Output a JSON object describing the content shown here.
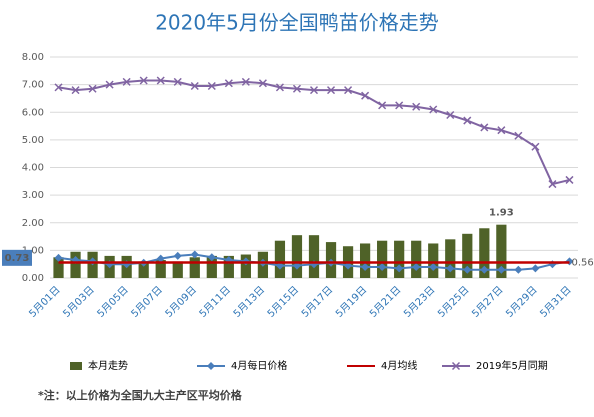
{
  "chart_data": {
    "type": "combo",
    "title": "2020年5月份全国鸭苗价格走势",
    "note": "*注：以上价格为全国九大主产区平均价格",
    "categories": [
      "5月01日",
      null,
      "5月03日",
      null,
      "5月05日",
      null,
      "5月07日",
      null,
      "5月09日",
      null,
      "5月11日",
      null,
      "5月13日",
      null,
      "5月15日",
      null,
      "5月17日",
      null,
      "5月19日",
      null,
      "5月21日",
      null,
      "5月23日",
      null,
      "5月25日",
      null,
      "5月27日",
      null,
      "5月29日",
      null,
      "5月31日"
    ],
    "ylim": [
      0,
      8
    ],
    "yticks": [
      {
        "value": 0,
        "label": "0.00"
      },
      {
        "value": 1,
        "label": "1.00"
      },
      {
        "value": 2,
        "label": "2.00"
      },
      {
        "value": 3,
        "label": "3.00"
      },
      {
        "value": 4,
        "label": "4.00"
      },
      {
        "value": 5,
        "label": "5.00"
      },
      {
        "value": 6,
        "label": "6.00"
      },
      {
        "value": 7,
        "label": "7.00"
      },
      {
        "value": 8,
        "label": "8.00"
      }
    ],
    "grid": true,
    "legend": "bottom",
    "series": [
      {
        "name": "本月走势",
        "type": "bar",
        "color": "#4f6228",
        "values": [
          0.75,
          0.95,
          0.95,
          0.8,
          0.8,
          0.6,
          0.65,
          0.6,
          0.75,
          0.8,
          0.8,
          0.85,
          0.95,
          1.35,
          1.55,
          1.55,
          1.3,
          1.15,
          1.25,
          1.35,
          1.35,
          1.35,
          1.25,
          1.4,
          1.6,
          1.8,
          1.93,
          null,
          null,
          null,
          null
        ],
        "value_labels": [
          null,
          null,
          null,
          null,
          null,
          null,
          null,
          null,
          null,
          null,
          null,
          null,
          null,
          null,
          null,
          null,
          null,
          null,
          null,
          null,
          null,
          null,
          null,
          null,
          null,
          null,
          "1.93",
          null,
          null,
          null,
          null
        ]
      },
      {
        "name": "4月每日价格",
        "type": "line",
        "marker": "diamond",
        "color": "#4a7ebb",
        "values": [
          0.73,
          0.65,
          0.6,
          0.5,
          0.5,
          0.55,
          0.7,
          0.8,
          0.85,
          0.75,
          0.65,
          0.6,
          0.55,
          0.45,
          0.45,
          0.5,
          0.55,
          0.45,
          0.4,
          0.4,
          0.35,
          0.4,
          0.4,
          0.35,
          0.3,
          0.3,
          0.3,
          0.3,
          0.35,
          0.5,
          0.6
        ],
        "value_labels": [
          "0.73",
          null,
          null,
          null,
          null,
          null,
          null,
          null,
          null,
          null,
          null,
          null,
          null,
          null,
          null,
          null,
          null,
          null,
          null,
          null,
          null,
          null,
          null,
          null,
          null,
          null,
          null,
          null,
          null,
          null,
          null
        ]
      },
      {
        "name": "4月均线",
        "type": "line",
        "marker": "none",
        "color": "#c00000",
        "values": [
          0.56,
          0.56,
          0.56,
          0.56,
          0.56,
          0.56,
          0.56,
          0.56,
          0.56,
          0.56,
          0.56,
          0.56,
          0.56,
          0.56,
          0.56,
          0.56,
          0.56,
          0.56,
          0.56,
          0.56,
          0.56,
          0.56,
          0.56,
          0.56,
          0.56,
          0.56,
          0.56,
          0.56,
          0.56,
          0.56,
          0.56
        ],
        "value_labels": [
          null,
          null,
          null,
          null,
          null,
          null,
          null,
          null,
          null,
          null,
          null,
          null,
          null,
          null,
          null,
          null,
          null,
          null,
          null,
          null,
          null,
          null,
          null,
          null,
          null,
          null,
          null,
          null,
          null,
          null,
          "0.56"
        ]
      },
      {
        "name": "2019年5月同期",
        "type": "line",
        "marker": "x",
        "color": "#8064a2",
        "values": [
          6.9,
          6.8,
          6.85,
          7.0,
          7.1,
          7.15,
          7.15,
          7.1,
          6.95,
          6.95,
          7.05,
          7.1,
          7.05,
          6.9,
          6.85,
          6.8,
          6.8,
          6.8,
          6.6,
          6.25,
          6.25,
          6.2,
          6.1,
          5.9,
          5.7,
          5.45,
          5.35,
          5.15,
          4.75,
          3.4,
          3.55
        ]
      }
    ]
  }
}
